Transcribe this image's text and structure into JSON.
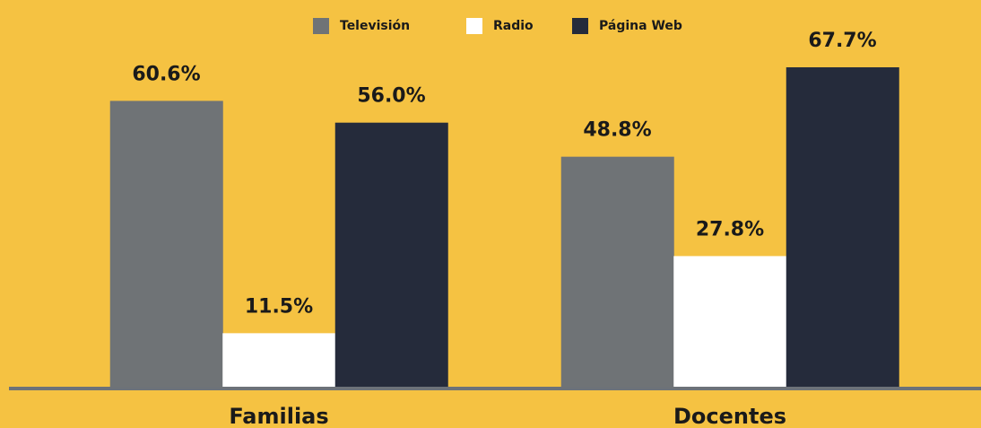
{
  "chart_data": {
    "type": "bar",
    "categories": [
      "Familias",
      "Docentes"
    ],
    "series": [
      {
        "name": "Televisión",
        "color": "#6f7376",
        "values": [
          60.6,
          48.8
        ],
        "value_labels": [
          "60.6%",
          "48.8%"
        ]
      },
      {
        "name": "Radio",
        "color": "#ffffff",
        "values": [
          11.5,
          27.8
        ],
        "value_labels": [
          "11.5%",
          "27.8%"
        ]
      },
      {
        "name": "Página Web",
        "color": "#252b3b",
        "values": [
          56.0,
          67.7
        ],
        "value_labels": [
          "56.0%",
          "67.7%"
        ]
      }
    ],
    "legend": "top"
  }
}
